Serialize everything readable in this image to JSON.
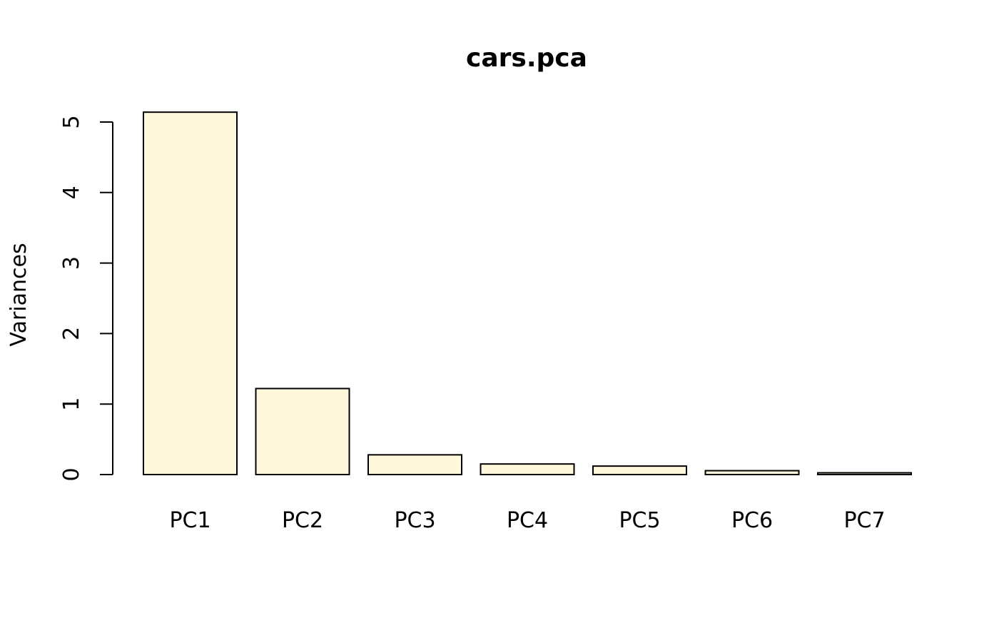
{
  "chart_data": {
    "type": "bar",
    "title": "cars.pca",
    "xlabel": "",
    "ylabel": "Variances",
    "categories": [
      "PC1",
      "PC2",
      "PC3",
      "PC4",
      "PC5",
      "PC6",
      "PC7"
    ],
    "values": [
      5.14,
      1.22,
      0.28,
      0.15,
      0.12,
      0.055,
      0.025
    ],
    "ylim": [
      0,
      5
    ],
    "yticks": [
      "0",
      "1",
      "2",
      "3",
      "4",
      "5"
    ],
    "grid": false,
    "legend": "none",
    "colors": {
      "bar_fill": "#FFF8DC",
      "bar_stroke": "#000000"
    }
  }
}
